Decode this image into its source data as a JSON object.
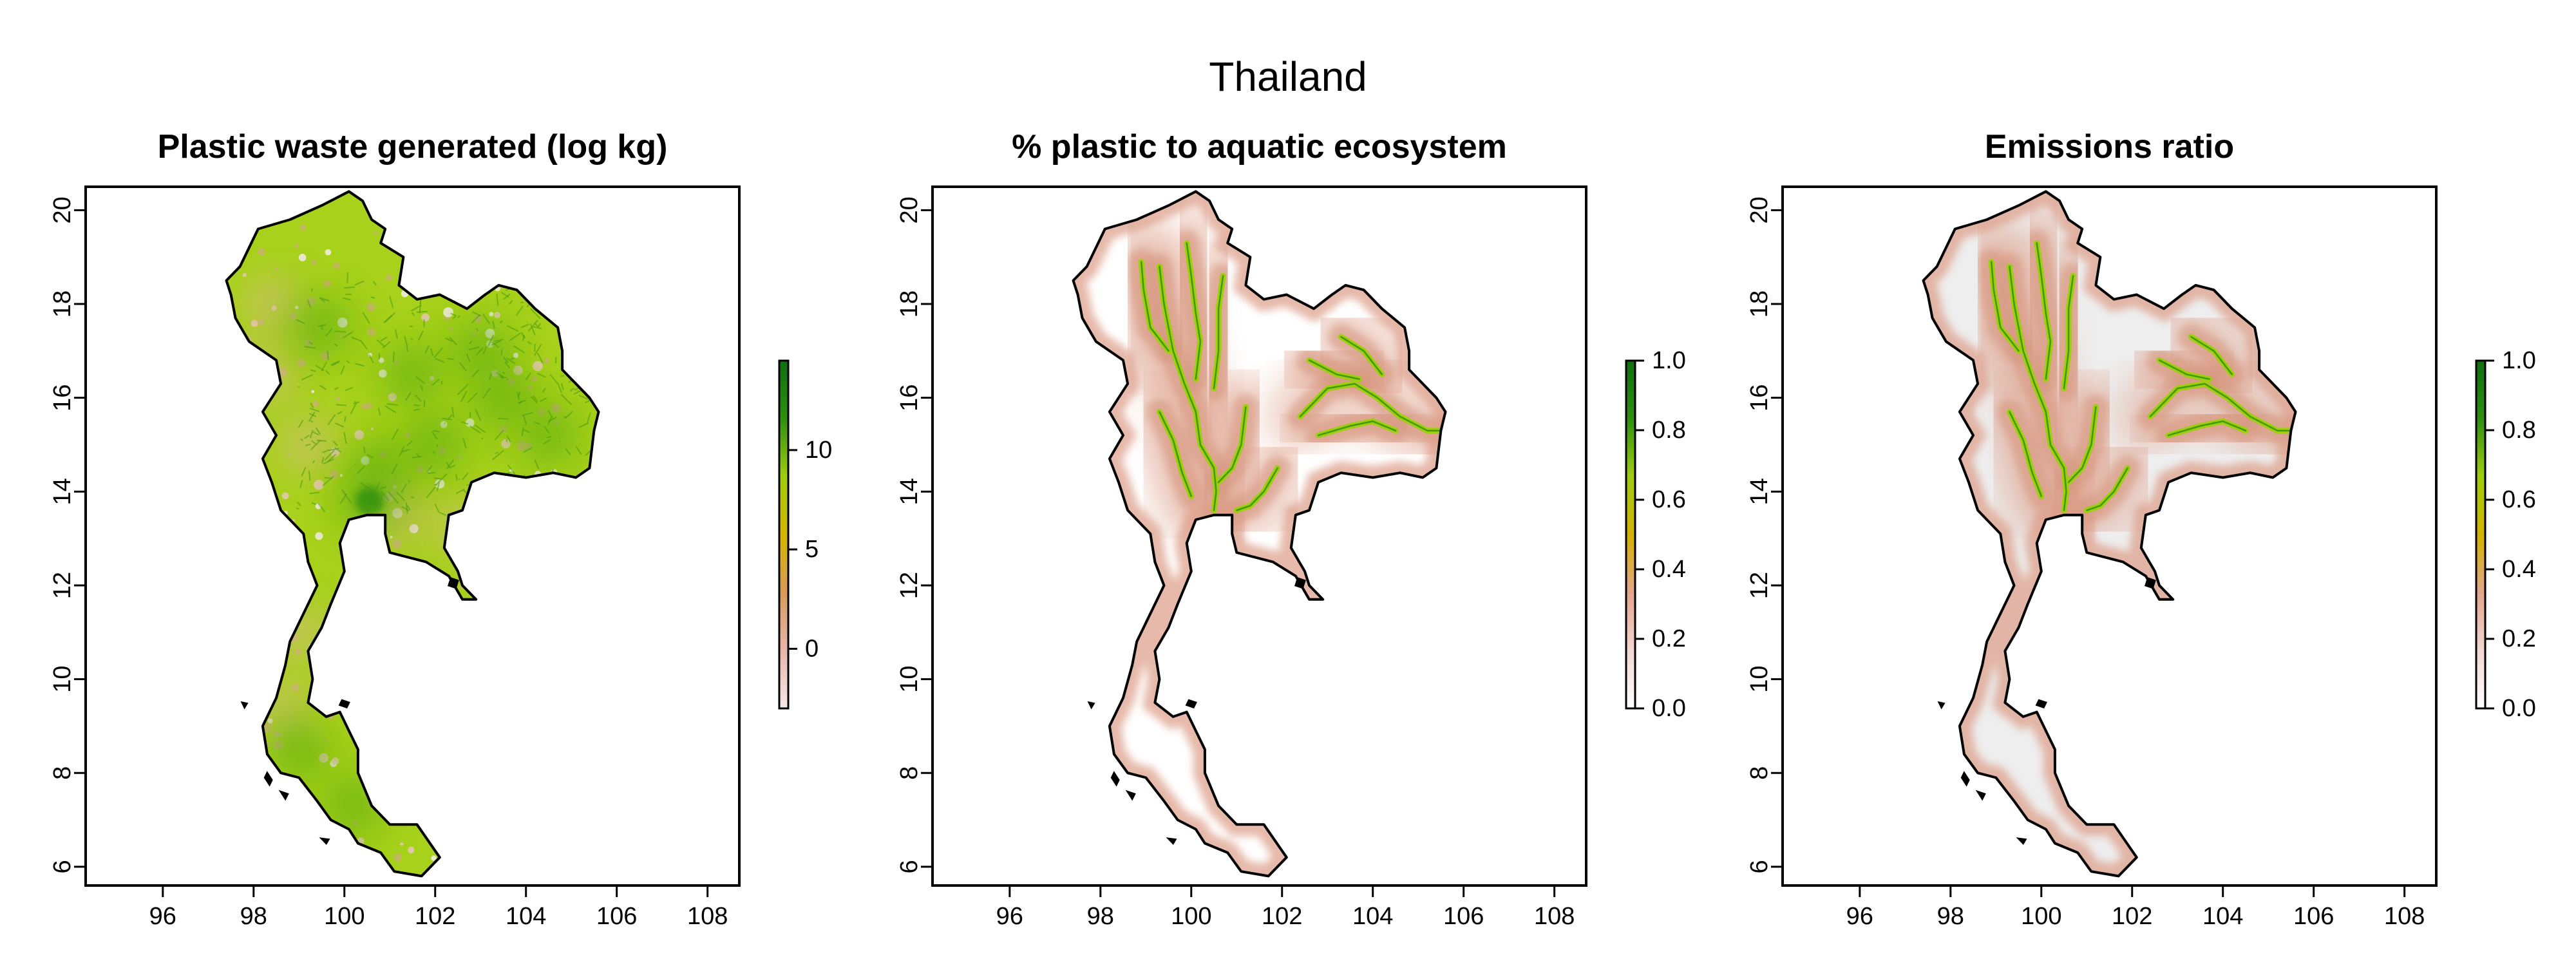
{
  "title": "Thailand",
  "panels": [
    {
      "title": "Plastic waste generated (log kg)",
      "variable": "plastic-waste",
      "legend": {
        "min": -3,
        "max": 14.5,
        "ticks": [
          0,
          5,
          10
        ],
        "colors": [
          "#f7e8e8",
          "#e7b6aa",
          "#d89a5a",
          "#d6b400",
          "#9fcd10",
          "#2f8f10",
          "#0e6f10"
        ]
      }
    },
    {
      "title": "% plastic to aquatic ecosystem",
      "variable": "aquatic-fraction",
      "legend": {
        "min": 0,
        "max": 1,
        "ticks": [
          0.0,
          0.2,
          0.4,
          0.6,
          0.8,
          1.0
        ],
        "colors": [
          "#ffffff",
          "#f2d7d1",
          "#e3a48b",
          "#d4b300",
          "#9fcd10",
          "#2f8f10",
          "#0e6f10"
        ]
      }
    },
    {
      "title": "Emissions ratio",
      "variable": "emissions-ratio",
      "legend": {
        "min": 0,
        "max": 1,
        "ticks": [
          0.0,
          0.2,
          0.4,
          0.6,
          0.8,
          1.0
        ],
        "colors": [
          "#ffffff",
          "#f2d7d1",
          "#e3a48b",
          "#d4b300",
          "#9fcd10",
          "#2f8f10",
          "#0e6f10"
        ]
      }
    }
  ],
  "axes": {
    "x_range": [
      94.3,
      108.7
    ],
    "y_range": [
      5.6,
      20.5
    ],
    "x_ticks": [
      96,
      98,
      100,
      102,
      104,
      106,
      108
    ],
    "y_ticks": [
      6,
      8,
      10,
      12,
      14,
      16,
      18,
      20
    ]
  },
  "outline": [
    [
      97.4,
      18.5
    ],
    [
      97.7,
      18.8
    ],
    [
      98.1,
      19.6
    ],
    [
      98.8,
      19.8
    ],
    [
      99.5,
      20.1
    ],
    [
      100.1,
      20.4
    ],
    [
      100.4,
      20.2
    ],
    [
      100.6,
      19.8
    ],
    [
      100.9,
      19.6
    ],
    [
      100.8,
      19.3
    ],
    [
      101.3,
      19.0
    ],
    [
      101.2,
      18.4
    ],
    [
      101.6,
      18.1
    ],
    [
      102.1,
      18.2
    ],
    [
      102.7,
      17.9
    ],
    [
      103.1,
      18.2
    ],
    [
      103.4,
      18.4
    ],
    [
      103.8,
      18.3
    ],
    [
      104.2,
      17.9
    ],
    [
      104.7,
      17.5
    ],
    [
      104.8,
      17.0
    ],
    [
      104.8,
      16.6
    ],
    [
      105.4,
      16.0
    ],
    [
      105.6,
      15.7
    ],
    [
      105.5,
      15.3
    ],
    [
      105.4,
      14.5
    ],
    [
      105.1,
      14.3
    ],
    [
      104.6,
      14.4
    ],
    [
      104.0,
      14.3
    ],
    [
      103.3,
      14.4
    ],
    [
      102.8,
      14.2
    ],
    [
      102.6,
      13.6
    ],
    [
      102.3,
      13.5
    ],
    [
      102.2,
      12.8
    ],
    [
      102.5,
      12.3
    ],
    [
      102.6,
      12.0
    ],
    [
      102.9,
      11.7
    ],
    [
      102.6,
      11.7
    ],
    [
      102.3,
      12.2
    ],
    [
      101.8,
      12.5
    ],
    [
      101.4,
      12.6
    ],
    [
      101.0,
      12.7
    ],
    [
      100.9,
      13.1
    ],
    [
      100.9,
      13.5
    ],
    [
      100.5,
      13.5
    ],
    [
      100.1,
      13.4
    ],
    [
      99.9,
      12.9
    ],
    [
      100.0,
      12.3
    ],
    [
      99.7,
      11.6
    ],
    [
      99.5,
      11.1
    ],
    [
      99.2,
      10.6
    ],
    [
      99.3,
      10.0
    ],
    [
      99.2,
      9.5
    ],
    [
      99.6,
      9.2
    ],
    [
      99.9,
      9.3
    ],
    [
      100.3,
      8.5
    ],
    [
      100.3,
      8.0
    ],
    [
      100.6,
      7.3
    ],
    [
      101.0,
      6.9
    ],
    [
      101.6,
      6.9
    ],
    [
      102.1,
      6.2
    ],
    [
      101.7,
      5.8
    ],
    [
      101.1,
      5.9
    ],
    [
      100.8,
      6.3
    ],
    [
      100.3,
      6.5
    ],
    [
      100.1,
      6.8
    ],
    [
      99.7,
      7.0
    ],
    [
      99.4,
      7.4
    ],
    [
      99.0,
      7.9
    ],
    [
      98.6,
      8.0
    ],
    [
      98.3,
      8.4
    ],
    [
      98.2,
      9.0
    ],
    [
      98.5,
      9.6
    ],
    [
      98.7,
      10.3
    ],
    [
      98.8,
      10.8
    ],
    [
      99.1,
      11.4
    ],
    [
      99.4,
      12.0
    ],
    [
      99.2,
      12.5
    ],
    [
      99.1,
      13.1
    ],
    [
      98.6,
      13.6
    ],
    [
      98.4,
      14.2
    ],
    [
      98.2,
      14.7
    ],
    [
      98.5,
      15.2
    ],
    [
      98.2,
      15.7
    ],
    [
      98.6,
      16.3
    ],
    [
      98.5,
      16.8
    ],
    [
      97.9,
      17.2
    ],
    [
      97.6,
      17.7
    ],
    [
      97.5,
      18.2
    ],
    [
      97.4,
      18.5
    ]
  ],
  "islands": [
    [
      [
        98.3,
        8.0
      ],
      [
        98.4,
        7.85
      ],
      [
        98.35,
        7.75
      ],
      [
        98.25,
        7.9
      ]
    ],
    [
      [
        99.95,
        9.55
      ],
      [
        100.1,
        9.5
      ],
      [
        100.05,
        9.4
      ],
      [
        99.9,
        9.45
      ]
    ],
    [
      [
        102.35,
        12.15
      ],
      [
        102.5,
        12.1
      ],
      [
        102.45,
        11.95
      ],
      [
        102.3,
        12.0
      ]
    ],
    [
      [
        97.75,
        9.5
      ],
      [
        97.85,
        9.48
      ],
      [
        97.8,
        9.4
      ]
    ],
    [
      [
        98.6,
        7.6
      ],
      [
        98.75,
        7.55
      ],
      [
        98.7,
        7.45
      ]
    ],
    [
      [
        99.5,
        6.6
      ],
      [
        99.65,
        6.58
      ],
      [
        99.6,
        6.5
      ]
    ]
  ],
  "rivers": [
    [
      [
        99.3,
        18.8
      ],
      [
        99.4,
        18.0
      ],
      [
        99.5,
        17.5
      ],
      [
        99.6,
        17.0
      ],
      [
        99.85,
        16.3
      ],
      [
        100.1,
        15.7
      ],
      [
        100.2,
        15.0
      ],
      [
        100.5,
        14.5
      ],
      [
        100.55,
        14.0
      ],
      [
        100.5,
        13.6
      ]
    ],
    [
      [
        98.9,
        18.9
      ],
      [
        98.95,
        18.3
      ],
      [
        99.1,
        17.5
      ],
      [
        99.5,
        17.0
      ]
    ],
    [
      [
        99.9,
        19.3
      ],
      [
        100.0,
        18.6
      ],
      [
        100.1,
        17.8
      ],
      [
        100.2,
        17.2
      ],
      [
        100.1,
        16.4
      ]
    ],
    [
      [
        100.7,
        18.6
      ],
      [
        100.6,
        17.9
      ],
      [
        100.6,
        17.0
      ],
      [
        100.5,
        16.2
      ]
    ],
    [
      [
        99.3,
        15.7
      ],
      [
        99.6,
        15.1
      ],
      [
        99.8,
        14.4
      ],
      [
        100.0,
        13.9
      ]
    ],
    [
      [
        101.2,
        15.8
      ],
      [
        101.1,
        15.0
      ],
      [
        100.9,
        14.5
      ],
      [
        100.6,
        14.2
      ]
    ],
    [
      [
        101.9,
        14.5
      ],
      [
        101.6,
        14.0
      ],
      [
        101.3,
        13.7
      ],
      [
        101.0,
        13.6
      ]
    ],
    [
      [
        102.4,
        15.6
      ],
      [
        103.0,
        16.2
      ],
      [
        103.6,
        16.3
      ],
      [
        104.1,
        16.0
      ],
      [
        104.6,
        15.6
      ],
      [
        105.2,
        15.3
      ],
      [
        105.5,
        15.3
      ]
    ],
    [
      [
        102.6,
        16.8
      ],
      [
        103.2,
        16.5
      ],
      [
        103.7,
        16.4
      ]
    ],
    [
      [
        103.3,
        17.3
      ],
      [
        103.8,
        17.0
      ],
      [
        104.2,
        16.5
      ]
    ],
    [
      [
        102.8,
        15.2
      ],
      [
        103.5,
        15.4
      ],
      [
        104.0,
        15.5
      ],
      [
        104.5,
        15.3
      ]
    ]
  ],
  "dense_centers": [
    [
      [
        100.55,
        13.8
      ],
      [
        100.8,
        14.5
      ],
      [
        102.0,
        15.0
      ],
      [
        103.5,
        16.0
      ],
      [
        103.0,
        17.0
      ],
      [
        101.5,
        16.5
      ],
      [
        99.5,
        17.5
      ],
      [
        99.0,
        8.5
      ],
      [
        100.2,
        7.3
      ],
      [
        104.5,
        15.2
      ]
    ]
  ],
  "sparse_centers": [
    [
      [
        98.4,
        18.0
      ],
      [
        98.3,
        16.5
      ],
      [
        99.2,
        15.0
      ],
      [
        101.2,
        13.5
      ],
      [
        102.7,
        13.2
      ],
      [
        99.0,
        11.0
      ],
      [
        98.6,
        9.4
      ]
    ]
  ]
}
